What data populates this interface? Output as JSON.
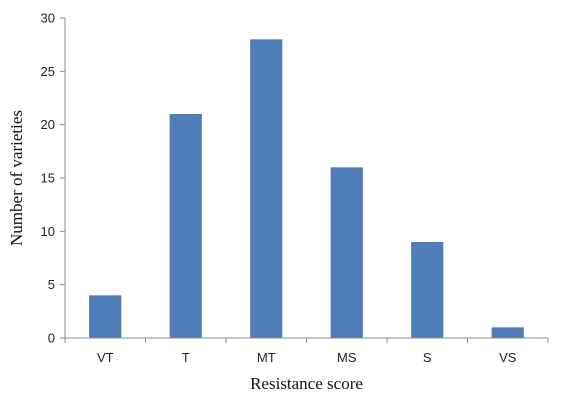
{
  "chart_data": {
    "type": "bar",
    "title": "",
    "xlabel": "Resistance score",
    "ylabel": "Number of varieties",
    "categories": [
      "VT",
      "T",
      "MT",
      "MS",
      "S",
      "VS"
    ],
    "values": [
      4,
      21,
      28,
      16,
      9,
      1
    ],
    "ylim": [
      0,
      30
    ],
    "yticks": [
      "0",
      "5",
      "10",
      "15",
      "20",
      "25",
      "30"
    ],
    "grid": false,
    "legend": "none",
    "colors": {
      "bar": "#4f7db8",
      "axis": "#8c8c8c"
    }
  }
}
